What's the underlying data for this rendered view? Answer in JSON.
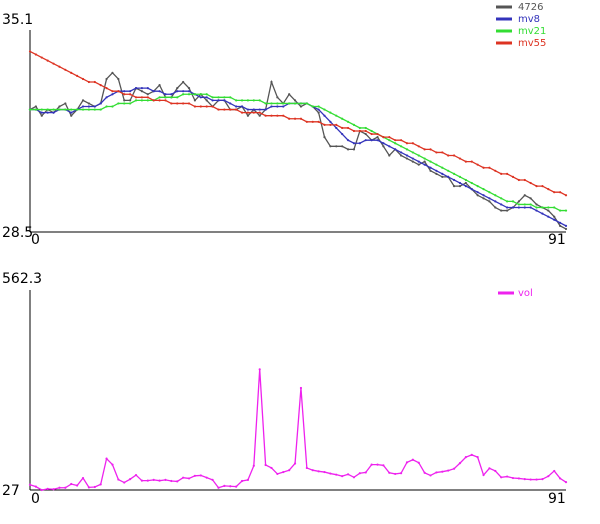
{
  "chart_data": [
    {
      "type": "line",
      "name": "price-panel",
      "title": "",
      "xlabel": "",
      "ylabel": "",
      "xlim": [
        0,
        91
      ],
      "ylim": [
        28.5,
        35.1
      ],
      "x_tick_labels": [
        "0",
        "91"
      ],
      "y_tick_labels": [
        "35.1",
        "28.5"
      ],
      "legend": {
        "position": "top-right",
        "entries": [
          {
            "name": "4726",
            "color": "#555555"
          },
          {
            "name": "mv8",
            "color": "#3333bb"
          },
          {
            "name": "mv21",
            "color": "#33dd33"
          },
          {
            "name": "mv55",
            "color": "#dd3322"
          }
        ]
      },
      "series": [
        {
          "name": "4726",
          "color": "#555555",
          "values": [
            32.5,
            32.6,
            32.3,
            32.5,
            32.4,
            32.6,
            32.7,
            32.3,
            32.5,
            32.8,
            32.7,
            32.6,
            32.7,
            33.5,
            33.7,
            33.5,
            32.8,
            32.8,
            33.2,
            33.1,
            33.0,
            33.1,
            33.3,
            32.9,
            32.9,
            33.2,
            33.4,
            33.2,
            32.8,
            33.0,
            32.8,
            32.6,
            32.8,
            32.8,
            32.5,
            32.5,
            32.6,
            32.3,
            32.5,
            32.3,
            32.5,
            33.4,
            32.9,
            32.7,
            33.0,
            32.8,
            32.6,
            32.7,
            32.6,
            32.4,
            31.6,
            31.3,
            31.3,
            31.3,
            31.2,
            31.2,
            31.8,
            31.7,
            31.5,
            31.6,
            31.3,
            31.0,
            31.2,
            31.0,
            30.9,
            30.8,
            30.7,
            30.8,
            30.5,
            30.4,
            30.3,
            30.3,
            30.0,
            30.0,
            30.1,
            29.9,
            29.7,
            29.6,
            29.5,
            29.3,
            29.2,
            29.2,
            29.3,
            29.5,
            29.7,
            29.6,
            29.4,
            29.3,
            29.2,
            29.0,
            28.7,
            28.6
          ]
        },
        {
          "name": "mv8",
          "color": "#3333bb",
          "values": [
            32.5,
            32.5,
            32.4,
            32.4,
            32.4,
            32.5,
            32.5,
            32.4,
            32.5,
            32.6,
            32.6,
            32.6,
            32.7,
            32.9,
            33.0,
            33.1,
            33.1,
            33.1,
            33.2,
            33.2,
            33.2,
            33.1,
            33.1,
            33.0,
            33.0,
            33.1,
            33.1,
            33.1,
            33.0,
            32.9,
            32.9,
            32.8,
            32.8,
            32.8,
            32.7,
            32.6,
            32.6,
            32.5,
            32.5,
            32.5,
            32.5,
            32.6,
            32.6,
            32.6,
            32.7,
            32.7,
            32.7,
            32.7,
            32.6,
            32.5,
            32.3,
            32.1,
            31.9,
            31.7,
            31.5,
            31.4,
            31.4,
            31.5,
            31.5,
            31.5,
            31.4,
            31.3,
            31.2,
            31.1,
            31.0,
            30.9,
            30.8,
            30.7,
            30.6,
            30.5,
            30.4,
            30.3,
            30.2,
            30.1,
            30.0,
            29.9,
            29.8,
            29.7,
            29.6,
            29.5,
            29.4,
            29.3,
            29.3,
            29.3,
            29.3,
            29.3,
            29.2,
            29.1,
            29.0,
            28.9,
            28.8,
            28.7
          ]
        },
        {
          "name": "mv21",
          "color": "#33dd33",
          "values": [
            32.5,
            32.5,
            32.5,
            32.5,
            32.5,
            32.5,
            32.5,
            32.5,
            32.5,
            32.5,
            32.5,
            32.5,
            32.5,
            32.6,
            32.6,
            32.7,
            32.7,
            32.7,
            32.8,
            32.8,
            32.8,
            32.8,
            32.9,
            32.9,
            32.9,
            32.9,
            33.0,
            33.0,
            33.0,
            33.0,
            33.0,
            32.9,
            32.9,
            32.9,
            32.9,
            32.8,
            32.8,
            32.8,
            32.8,
            32.8,
            32.7,
            32.7,
            32.7,
            32.7,
            32.7,
            32.7,
            32.7,
            32.7,
            32.6,
            32.6,
            32.5,
            32.4,
            32.3,
            32.2,
            32.1,
            32.0,
            31.9,
            31.9,
            31.8,
            31.7,
            31.6,
            31.5,
            31.4,
            31.3,
            31.2,
            31.1,
            31.0,
            30.9,
            30.8,
            30.7,
            30.6,
            30.5,
            30.4,
            30.3,
            30.2,
            30.1,
            30.0,
            29.9,
            29.8,
            29.7,
            29.6,
            29.5,
            29.5,
            29.4,
            29.4,
            29.4,
            29.3,
            29.3,
            29.3,
            29.3,
            29.2,
            29.2
          ]
        },
        {
          "name": "mv55",
          "color": "#dd3322",
          "values": [
            34.4,
            34.3,
            34.2,
            34.1,
            34.0,
            33.9,
            33.8,
            33.7,
            33.6,
            33.5,
            33.4,
            33.4,
            33.3,
            33.2,
            33.1,
            33.1,
            33.0,
            33.0,
            32.9,
            32.9,
            32.9,
            32.8,
            32.8,
            32.8,
            32.7,
            32.7,
            32.7,
            32.7,
            32.6,
            32.6,
            32.6,
            32.6,
            32.5,
            32.5,
            32.5,
            32.5,
            32.4,
            32.4,
            32.4,
            32.4,
            32.3,
            32.3,
            32.3,
            32.3,
            32.2,
            32.2,
            32.2,
            32.1,
            32.1,
            32.1,
            32.0,
            32.0,
            32.0,
            31.9,
            31.9,
            31.8,
            31.8,
            31.8,
            31.7,
            31.7,
            31.6,
            31.6,
            31.5,
            31.5,
            31.4,
            31.4,
            31.3,
            31.2,
            31.2,
            31.1,
            31.1,
            31.0,
            31.0,
            30.9,
            30.8,
            30.8,
            30.7,
            30.6,
            30.6,
            30.5,
            30.4,
            30.4,
            30.3,
            30.2,
            30.2,
            30.1,
            30.0,
            30.0,
            29.9,
            29.8,
            29.8,
            29.7
          ]
        }
      ]
    },
    {
      "type": "line",
      "name": "volume-panel",
      "title": "",
      "xlabel": "",
      "ylabel": "",
      "xlim": [
        0,
        91
      ],
      "ylim": [
        27,
        562.3
      ],
      "x_tick_labels": [
        "0",
        "91"
      ],
      "y_tick_labels": [
        "562.3",
        "27"
      ],
      "legend": {
        "position": "top-right",
        "entries": [
          {
            "name": "vol",
            "color": "#ee22ee"
          }
        ]
      },
      "series": [
        {
          "name": "vol",
          "color": "#ee22ee",
          "values": [
            41,
            36,
            27,
            30,
            29,
            33,
            33,
            43,
            39,
            59,
            34,
            35,
            42,
            111,
            95,
            55,
            47,
            56,
            67,
            52,
            52,
            54,
            52,
            54,
            51,
            50,
            60,
            58,
            65,
            66,
            60,
            54,
            33,
            38,
            37,
            36,
            51,
            54,
            92,
            350,
            94,
            86,
            70,
            75,
            80,
            98,
            300,
            86,
            80,
            77,
            75,
            71,
            68,
            64,
            69,
            61,
            72,
            74,
            95,
            95,
            93,
            73,
            70,
            72,
            101,
            108,
            100,
            73,
            66,
            74,
            76,
            79,
            84,
            99,
            115,
            121,
            115,
            67,
            85,
            78,
            61,
            63,
            59,
            58,
            56,
            55,
            55,
            56,
            64,
            78,
            58,
            48
          ]
        }
      ]
    }
  ]
}
